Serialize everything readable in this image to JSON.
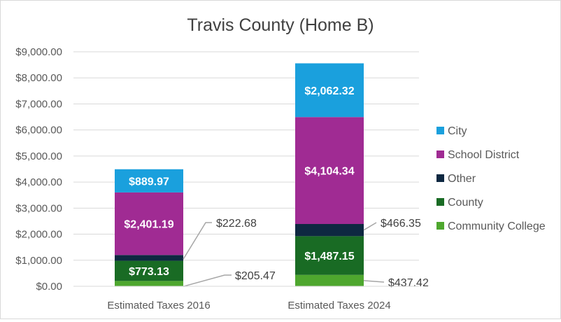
{
  "chart_data": {
    "type": "bar",
    "stacked": true,
    "title": "Travis County (Home B)",
    "xlabel": "",
    "ylabel": "",
    "ylim": [
      0,
      9000
    ],
    "ytick_step": 1000,
    "ytick_labels": [
      "$0.00",
      "$1,000.00",
      "$2,000.00",
      "$3,000.00",
      "$4,000.00",
      "$5,000.00",
      "$6,000.00",
      "$7,000.00",
      "$8,000.00",
      "$9,000.00"
    ],
    "grid": true,
    "legend_position": "right",
    "categories": [
      "Estimated Taxes 2016",
      "Estimated Taxes 2024"
    ],
    "series": [
      {
        "name": "Community College",
        "color": "#4ea72e",
        "values": [
          205.47,
          437.42
        ],
        "labels": [
          "$205.47",
          "$437.42"
        ],
        "label_style": "callout"
      },
      {
        "name": "County",
        "color": "#196b24",
        "values": [
          773.13,
          1487.15
        ],
        "labels": [
          "$773.13",
          "$1,487.15"
        ],
        "label_style": "inside"
      },
      {
        "name": "Other",
        "color": "#0e2841",
        "values": [
          222.68,
          466.35
        ],
        "labels": [
          "$222.68",
          "$466.35"
        ],
        "label_style": "callout"
      },
      {
        "name": "School District",
        "color": "#a02b93",
        "values": [
          2401.19,
          4104.34
        ],
        "labels": [
          "$2,401.19",
          "$4,104.34"
        ],
        "label_style": "inside"
      },
      {
        "name": "City",
        "color": "#1aa0dd",
        "values": [
          889.97,
          2062.32
        ],
        "labels": [
          "$889.97",
          "$2,062.32"
        ],
        "label_style": "inside"
      }
    ],
    "legend_order": [
      "City",
      "School District",
      "Other",
      "County",
      "Community College"
    ]
  }
}
